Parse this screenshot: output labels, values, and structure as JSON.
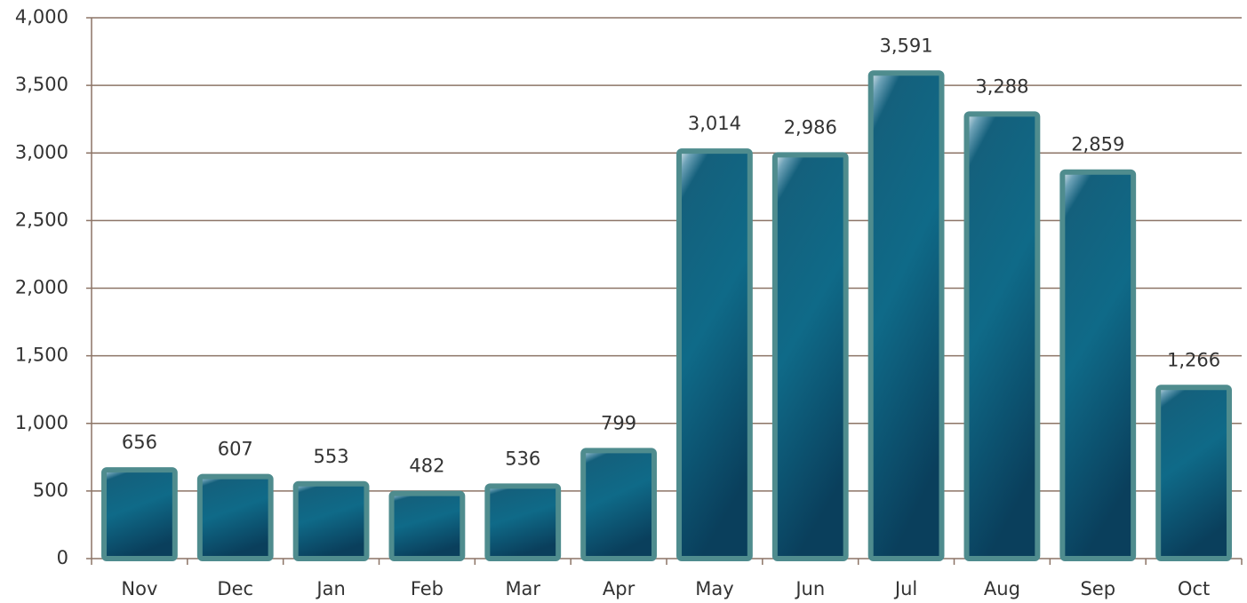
{
  "chart_data": {
    "type": "bar",
    "categories": [
      "Nov",
      "Dec",
      "Jan",
      "Feb",
      "Mar",
      "Apr",
      "May",
      "Jun",
      "Jul",
      "Aug",
      "Sep",
      "Oct"
    ],
    "values": [
      656,
      607,
      553,
      482,
      536,
      799,
      3014,
      2986,
      3591,
      3288,
      2859,
      1266
    ],
    "value_labels": [
      "656",
      "607",
      "553",
      "482",
      "536",
      "799",
      "3,014",
      "2,986",
      "3,591",
      "3,288",
      "2,859",
      "1,266"
    ],
    "color": "#0f5f7c",
    "edge_color": "#4f8c8e",
    "grid_color": "#8c7466",
    "ylim": [
      0,
      4000
    ],
    "yticks": [
      0,
      500,
      {
        "value": 1000,
        "label": "1,000"
      },
      {
        "value": 1500,
        "label": "1,500"
      },
      {
        "value": 2000,
        "label": "2,000"
      },
      {
        "value": 2500,
        "label": "2,500"
      },
      {
        "value": 3000,
        "label": "3,000"
      },
      {
        "value": 3500,
        "label": "3,500"
      },
      {
        "value": 4000,
        "label": "4,000"
      }
    ],
    "grid": true
  }
}
